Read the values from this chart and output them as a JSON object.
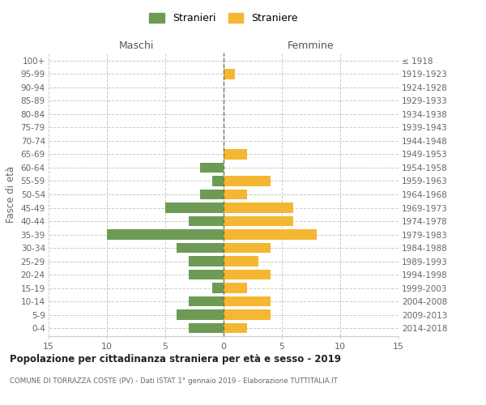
{
  "age_groups": [
    "0-4",
    "5-9",
    "10-14",
    "15-19",
    "20-24",
    "25-29",
    "30-34",
    "35-39",
    "40-44",
    "45-49",
    "50-54",
    "55-59",
    "60-64",
    "65-69",
    "70-74",
    "75-79",
    "80-84",
    "85-89",
    "90-94",
    "95-99",
    "100+"
  ],
  "birth_years": [
    "2014-2018",
    "2009-2013",
    "2004-2008",
    "1999-2003",
    "1994-1998",
    "1989-1993",
    "1984-1988",
    "1979-1983",
    "1974-1978",
    "1969-1973",
    "1964-1968",
    "1959-1963",
    "1954-1958",
    "1949-1953",
    "1944-1948",
    "1939-1943",
    "1934-1938",
    "1929-1933",
    "1924-1928",
    "1919-1923",
    "≤ 1918"
  ],
  "males": [
    3,
    4,
    3,
    1,
    3,
    3,
    4,
    10,
    3,
    5,
    2,
    1,
    2,
    0,
    0,
    0,
    0,
    0,
    0,
    0,
    0
  ],
  "females": [
    2,
    4,
    4,
    2,
    4,
    3,
    4,
    8,
    6,
    6,
    2,
    4,
    0,
    2,
    0,
    0,
    0,
    0,
    0,
    1,
    0
  ],
  "male_color": "#6d9b56",
  "female_color": "#f5b731",
  "center_line_color": "#7a7a40",
  "grid_color": "#cccccc",
  "background_color": "#ffffff",
  "title": "Popolazione per cittadinanza straniera per età e sesso - 2019",
  "subtitle": "COMUNE DI TORRAZZA COSTE (PV) - Dati ISTAT 1° gennaio 2019 - Elaborazione TUTTITALIA.IT",
  "xlabel_left": "Maschi",
  "xlabel_right": "Femmine",
  "ylabel_left": "Fasce di età",
  "legend_male": "Stranieri",
  "legend_female": "Straniere",
  "xlim": 15,
  "figsize": [
    6.0,
    5.0
  ],
  "dpi": 100
}
